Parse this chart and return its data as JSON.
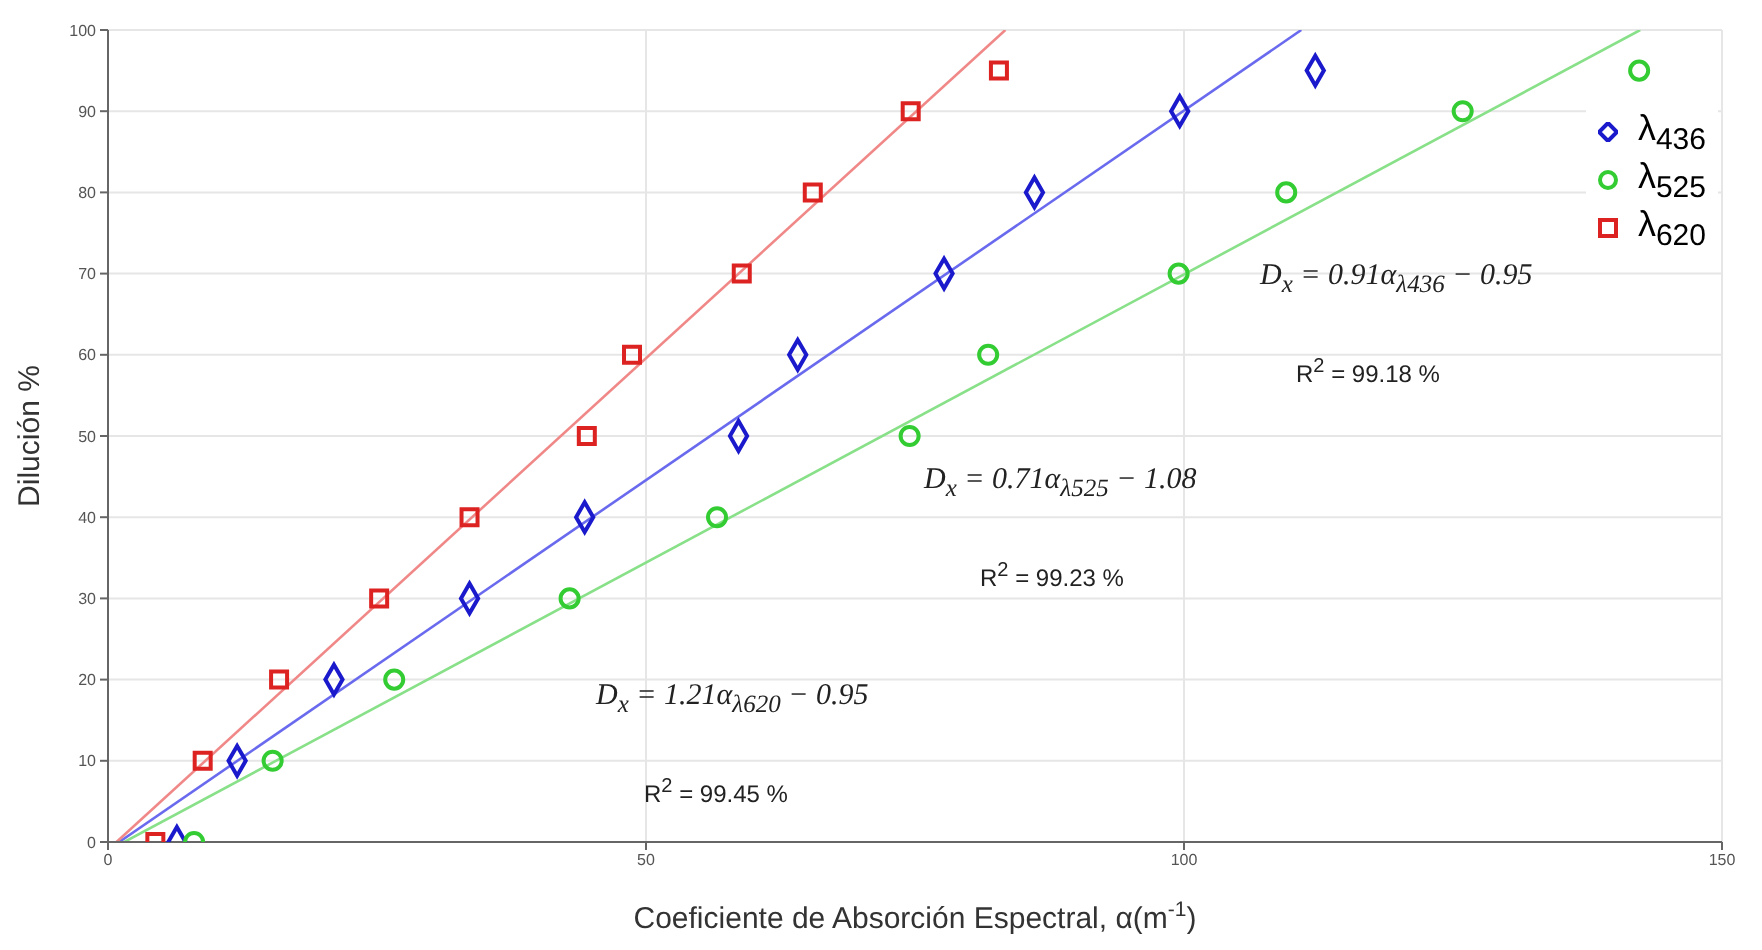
{
  "chart_data": {
    "type": "scatter",
    "xlabel": "Coeficiente de Absorción Espectral, α(m$^{-1}$)",
    "ylabel": "Dilución %",
    "xlim": [
      0,
      150
    ],
    "xticks": [
      0,
      50,
      100,
      150
    ],
    "ylim": [
      0,
      100
    ],
    "yticks": [
      0,
      10,
      20,
      30,
      40,
      50,
      60,
      70,
      80,
      90,
      100
    ],
    "grid": true,
    "legend": "top right",
    "series": [
      {
        "name": "λ$_{436}$",
        "marker": "diamond",
        "color": "#1a1acc",
        "x": [
          6.4,
          12.0,
          21.0,
          33.6,
          44.3,
          58.6,
          64.1,
          77.7,
          86.1,
          99.6,
          112.2
        ],
        "values": [
          0,
          10,
          20,
          30,
          40,
          50,
          60,
          70,
          80,
          90,
          95
        ]
      },
      {
        "name": "λ$_{525}$",
        "marker": "circle",
        "color": "#33cc33",
        "x": [
          8.0,
          15.3,
          26.6,
          42.9,
          56.6,
          74.5,
          81.8,
          99.5,
          109.5,
          125.9,
          142.3
        ],
        "values": [
          0,
          10,
          20,
          30,
          40,
          50,
          60,
          70,
          80,
          90,
          95
        ]
      },
      {
        "name": "λ$_{620}$",
        "marker": "square",
        "color": "#dd2222",
        "x": [
          4.4,
          8.8,
          15.9,
          25.2,
          33.6,
          44.5,
          48.7,
          58.9,
          65.5,
          74.6,
          82.8
        ],
        "values": [
          0,
          10,
          20,
          30,
          40,
          50,
          60,
          70,
          80,
          90,
          95
        ]
      },
      {
        "type": "line",
        "marker": "none",
        "color": "#6a6aee",
        "x": [
          1.04,
          110.9
        ],
        "values": [
          0,
          100
        ]
      },
      {
        "type": "line",
        "marker": "none",
        "color": "#88e088",
        "x": [
          1.52,
          142.4
        ],
        "values": [
          0,
          100
        ]
      },
      {
        "type": "line",
        "marker": "none",
        "color": "#f08888",
        "x": [
          0.79,
          83.4
        ],
        "values": [
          0,
          100
        ]
      }
    ],
    "annotations": [
      "D$_{x}$ = 0.91α$_{λ436}$ − 0.95",
      "R$^{2}$ = 99.18 %",
      "D$_{x}$ = 0.71α$_{λ525}$ − 1.08",
      "R$^{2}$ = 99.23 %",
      "D$_{x}$ = 1.21α$_{λ620}$ − 0.95",
      "R$^{2}$ = 99.45 %"
    ]
  }
}
